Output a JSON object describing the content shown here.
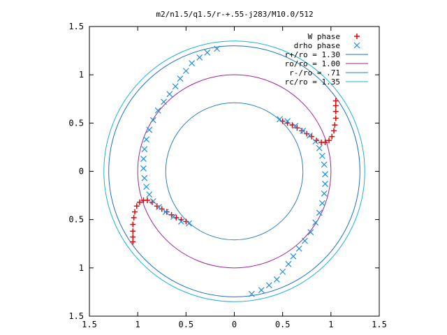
{
  "chart_data": {
    "type": "scatter",
    "title": "m2/n1.5/q1.5/r-+.55-j283/M10.0/512",
    "xlabel": "",
    "ylabel": "",
    "xlim": [
      -1.5,
      1.5
    ],
    "ylim": [
      -1.5,
      1.5
    ],
    "x_ticks": [
      -1.5,
      -1,
      -0.5,
      0,
      0.5,
      1,
      1.5
    ],
    "y_ticks": [
      -1.5,
      -1,
      -0.5,
      0,
      0.5,
      1,
      1.5
    ],
    "x_tick_labels": [
      "1.5",
      "1",
      "0.5",
      "0",
      "0.5",
      "1",
      "1.5"
    ],
    "y_tick_labels": [
      "1.5",
      "1",
      "0.5",
      "0",
      "0.5",
      "1",
      "1.5"
    ],
    "grid": false,
    "legend_position": "top-right",
    "circles": [
      {
        "name": "r+/ro = 1.30",
        "radius": 1.3,
        "color": "#1f6fc0"
      },
      {
        "name": "ro/ro = 1.00",
        "radius": 1.0,
        "color": "#a020a0"
      },
      {
        "name": "r-/ro = .71",
        "radius": 0.71,
        "color": "#2a7fbf"
      },
      {
        "name": "rc/ro = 1.35",
        "radius": 1.35,
        "color": "#20b0d0"
      }
    ],
    "series": [
      {
        "name": "W phase",
        "marker": "plus",
        "color": "#ee0000",
        "points": [
          [
            0.5,
            0.52
          ],
          [
            0.55,
            0.5
          ],
          [
            0.6,
            0.48
          ],
          [
            0.65,
            0.45
          ],
          [
            0.7,
            0.42
          ],
          [
            0.75,
            0.39
          ],
          [
            0.8,
            0.36
          ],
          [
            0.85,
            0.32
          ],
          [
            0.9,
            0.3
          ],
          [
            0.94,
            0.3
          ],
          [
            0.98,
            0.32
          ],
          [
            1.01,
            0.36
          ],
          [
            1.03,
            0.42
          ],
          [
            1.04,
            0.48
          ],
          [
            1.05,
            0.55
          ],
          [
            1.05,
            0.62
          ],
          [
            1.05,
            0.68
          ],
          [
            1.05,
            0.73
          ],
          [
            -0.5,
            -0.52
          ],
          [
            -0.55,
            -0.5
          ],
          [
            -0.6,
            -0.48
          ],
          [
            -0.65,
            -0.45
          ],
          [
            -0.7,
            -0.42
          ],
          [
            -0.75,
            -0.39
          ],
          [
            -0.8,
            -0.36
          ],
          [
            -0.85,
            -0.32
          ],
          [
            -0.9,
            -0.3
          ],
          [
            -0.94,
            -0.3
          ],
          [
            -0.98,
            -0.32
          ],
          [
            -1.01,
            -0.36
          ],
          [
            -1.03,
            -0.42
          ],
          [
            -1.04,
            -0.48
          ],
          [
            -1.05,
            -0.55
          ],
          [
            -1.05,
            -0.62
          ],
          [
            -1.05,
            -0.68
          ],
          [
            -1.05,
            -0.73
          ]
        ]
      },
      {
        "name": "drho phase",
        "marker": "cross",
        "color": "#1f8fe0",
        "points": [
          [
            0.47,
            0.54
          ],
          [
            0.55,
            0.52
          ],
          [
            0.63,
            0.47
          ],
          [
            0.71,
            0.42
          ],
          [
            0.78,
            0.37
          ],
          [
            0.84,
            0.31
          ],
          [
            0.88,
            0.24
          ],
          [
            0.91,
            0.16
          ],
          [
            0.93,
            0.07
          ],
          [
            0.94,
            -0.03
          ],
          [
            0.94,
            -0.13
          ],
          [
            0.93,
            -0.23
          ],
          [
            0.91,
            -0.33
          ],
          [
            0.88,
            -0.43
          ],
          [
            0.84,
            -0.53
          ],
          [
            0.79,
            -0.63
          ],
          [
            0.73,
            -0.72
          ],
          [
            0.67,
            -0.8
          ],
          [
            0.61,
            -0.88
          ],
          [
            0.56,
            -0.96
          ],
          [
            0.5,
            -1.04
          ],
          [
            0.44,
            -1.12
          ],
          [
            0.36,
            -1.18
          ],
          [
            0.28,
            -1.23
          ],
          [
            0.18,
            -1.27
          ],
          [
            -0.47,
            -0.54
          ],
          [
            -0.55,
            -0.52
          ],
          [
            -0.63,
            -0.47
          ],
          [
            -0.71,
            -0.42
          ],
          [
            -0.78,
            -0.37
          ],
          [
            -0.84,
            -0.31
          ],
          [
            -0.88,
            -0.24
          ],
          [
            -0.91,
            -0.16
          ],
          [
            -0.93,
            -0.07
          ],
          [
            -0.94,
            0.03
          ],
          [
            -0.94,
            0.13
          ],
          [
            -0.93,
            0.23
          ],
          [
            -0.91,
            0.33
          ],
          [
            -0.88,
            0.43
          ],
          [
            -0.84,
            0.53
          ],
          [
            -0.79,
            0.63
          ],
          [
            -0.73,
            0.72
          ],
          [
            -0.67,
            0.8
          ],
          [
            -0.61,
            0.88
          ],
          [
            -0.56,
            0.96
          ],
          [
            -0.5,
            1.04
          ],
          [
            -0.44,
            1.12
          ],
          [
            -0.36,
            1.18
          ],
          [
            -0.28,
            1.23
          ],
          [
            -0.18,
            1.27
          ]
        ]
      }
    ]
  }
}
